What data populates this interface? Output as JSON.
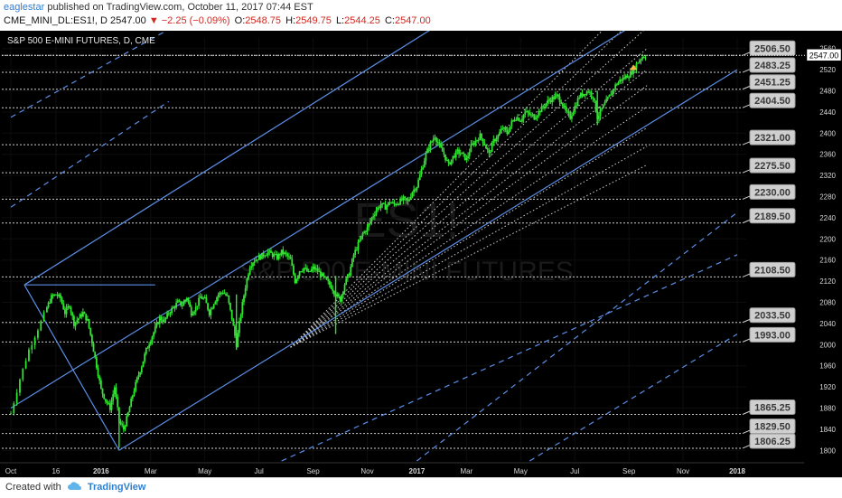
{
  "header": {
    "author": "eaglestar",
    "published_text": "published on TradingView.com, October 11, 2017 07:44 EST",
    "symbol": "CME_MINI_DL:ES1!, D",
    "last": "2547.00",
    "change": "▼ −2.25 (−0.09%)",
    "o_label": "O:",
    "o_value": "2548.75",
    "h_label": "H:",
    "h_value": "2549.75",
    "l_label": "L:",
    "l_value": "2544.25",
    "c_label": "C:",
    "c_value": "2547.00"
  },
  "footer": {
    "created_with": "Created with",
    "brand": "TradingView"
  },
  "colors": {
    "background": "#000000",
    "candle": "#32e432",
    "channel": "#5b8ee6",
    "level_line": "#d0d0d0",
    "label_bg": "#cfcfcf",
    "label_text": "#3a3a3a"
  },
  "chart_data": {
    "type": "candlestick",
    "title": "S&P 500 E-MINI FUTURES, D, CME",
    "watermark_symbol": "ES1!",
    "watermark_name": "S&P 500 E-MINI FUTURES",
    "last_price_label": "2547.00",
    "ylim": [
      1780,
      2580
    ],
    "y_ticks": [
      1800,
      1840,
      1880,
      1920,
      1960,
      2000,
      2040,
      2080,
      2120,
      2160,
      2200,
      2240,
      2280,
      2320,
      2360,
      2400,
      2440,
      2480,
      2520,
      2560
    ],
    "x_ticks": [
      "Oct",
      "16",
      "2016",
      "Mar",
      "May",
      "Jul",
      "Sep",
      "Nov",
      "2017",
      "Mar",
      "May",
      "Jul",
      "Sep",
      "Nov",
      "2018"
    ],
    "x_tick_index": [
      0,
      10,
      20,
      31,
      43,
      55,
      67,
      79,
      90,
      101,
      113,
      125,
      137,
      149,
      161
    ],
    "levels": [
      {
        "label": "2506.50",
        "price": 2547.0
      },
      {
        "label": "2483.25",
        "price": 2515.0
      },
      {
        "label": "2451.25",
        "price": 2483.0
      },
      {
        "label": "2404.50",
        "price": 2448.0
      },
      {
        "label": "2321.00",
        "price": 2378.0
      },
      {
        "label": "2275.50",
        "price": 2325.0
      },
      {
        "label": "2230.00",
        "price": 2275.0
      },
      {
        "label": "2189.50",
        "price": 2230.0
      },
      {
        "label": "2108.50",
        "price": 2128.0
      },
      {
        "label": "2033.50",
        "price": 2042.0
      },
      {
        "label": "1993.00",
        "price": 2005.0
      },
      {
        "label": "1865.25",
        "price": 1868.0
      },
      {
        "label": "1829.50",
        "price": 1832.0
      },
      {
        "label": "1806.25",
        "price": 1804.0
      }
    ],
    "close_path": [
      [
        0,
        1870
      ],
      [
        2,
        1935
      ],
      [
        4,
        1990
      ],
      [
        6,
        2030
      ],
      [
        8,
        2070
      ],
      [
        9,
        2090
      ],
      [
        10,
        2095
      ],
      [
        11,
        2088
      ],
      [
        12,
        2060
      ],
      [
        13,
        2075
      ],
      [
        14,
        2040
      ],
      [
        15,
        2050
      ],
      [
        16,
        2060
      ],
      [
        17,
        2045
      ],
      [
        18,
        2005
      ],
      [
        19,
        1960
      ],
      [
        20,
        1915
      ],
      [
        21,
        1895
      ],
      [
        22,
        1880
      ],
      [
        23,
        1920
      ],
      [
        24,
        1855
      ],
      [
        25,
        1840
      ],
      [
        26,
        1870
      ],
      [
        27,
        1905
      ],
      [
        28,
        1935
      ],
      [
        29,
        1960
      ],
      [
        30,
        1990
      ],
      [
        31,
        2010
      ],
      [
        32,
        2030
      ],
      [
        33,
        2050
      ],
      [
        34,
        2045
      ],
      [
        35,
        2060
      ],
      [
        36,
        2070
      ],
      [
        37,
        2080
      ],
      [
        38,
        2075
      ],
      [
        39,
        2090
      ],
      [
        40,
        2060
      ],
      [
        41,
        2070
      ],
      [
        42,
        2090
      ],
      [
        43,
        2085
      ],
      [
        44,
        2060
      ],
      [
        45,
        2080
      ],
      [
        46,
        2095
      ],
      [
        47,
        2100
      ],
      [
        48,
        2090
      ],
      [
        49,
        2050
      ],
      [
        50,
        2000
      ],
      [
        51,
        2060
      ],
      [
        52,
        2110
      ],
      [
        53,
        2150
      ],
      [
        54,
        2160
      ],
      [
        55,
        2165
      ],
      [
        56,
        2170
      ],
      [
        57,
        2175
      ],
      [
        58,
        2170
      ],
      [
        59,
        2165
      ],
      [
        60,
        2175
      ],
      [
        61,
        2170
      ],
      [
        62,
        2160
      ],
      [
        63,
        2120
      ],
      [
        64,
        2140
      ],
      [
        65,
        2145
      ],
      [
        66,
        2135
      ],
      [
        67,
        2145
      ],
      [
        68,
        2140
      ],
      [
        69,
        2130
      ],
      [
        70,
        2120
      ],
      [
        71,
        2110
      ],
      [
        72,
        2095
      ],
      [
        73,
        2085
      ],
      [
        74,
        2115
      ],
      [
        75,
        2135
      ],
      [
        76,
        2170
      ],
      [
        77,
        2190
      ],
      [
        78,
        2210
      ],
      [
        79,
        2220
      ],
      [
        80,
        2240
      ],
      [
        81,
        2255
      ],
      [
        82,
        2265
      ],
      [
        83,
        2260
      ],
      [
        84,
        2270
      ],
      [
        85,
        2265
      ],
      [
        86,
        2270
      ],
      [
        87,
        2275
      ],
      [
        88,
        2270
      ],
      [
        89,
        2290
      ],
      [
        90,
        2300
      ],
      [
        91,
        2330
      ],
      [
        92,
        2360
      ],
      [
        93,
        2380
      ],
      [
        94,
        2395
      ],
      [
        95,
        2375
      ],
      [
        96,
        2360
      ],
      [
        97,
        2340
      ],
      [
        98,
        2355
      ],
      [
        99,
        2365
      ],
      [
        100,
        2360
      ],
      [
        101,
        2350
      ],
      [
        102,
        2375
      ],
      [
        103,
        2385
      ],
      [
        104,
        2395
      ],
      [
        105,
        2380
      ],
      [
        106,
        2360
      ],
      [
        107,
        2385
      ],
      [
        108,
        2395
      ],
      [
        109,
        2410
      ],
      [
        110,
        2400
      ],
      [
        111,
        2420
      ],
      [
        112,
        2430
      ],
      [
        113,
        2425
      ],
      [
        114,
        2440
      ],
      [
        115,
        2435
      ],
      [
        116,
        2430
      ],
      [
        117,
        2440
      ],
      [
        118,
        2450
      ],
      [
        119,
        2460
      ],
      [
        120,
        2465
      ],
      [
        121,
        2470
      ],
      [
        122,
        2460
      ],
      [
        123,
        2440
      ],
      [
        124,
        2430
      ],
      [
        125,
        2450
      ],
      [
        126,
        2470
      ],
      [
        127,
        2475
      ],
      [
        128,
        2480
      ],
      [
        129,
        2470
      ],
      [
        130,
        2430
      ],
      [
        131,
        2445
      ],
      [
        132,
        2460
      ],
      [
        133,
        2475
      ],
      [
        134,
        2490
      ],
      [
        135,
        2500
      ],
      [
        136,
        2505
      ],
      [
        137,
        2510
      ],
      [
        138,
        2520
      ],
      [
        139,
        2535
      ],
      [
        140,
        2545
      ],
      [
        141,
        2547
      ]
    ],
    "wicks": [
      {
        "i": 50,
        "low": 1990,
        "high": 2095
      },
      {
        "i": 72,
        "low": 2020,
        "high": 2130
      },
      {
        "i": 24,
        "low": 1805,
        "high": 1880
      },
      {
        "i": 130,
        "low": 2415,
        "high": 2480
      }
    ],
    "channels": [
      {
        "style": "solid",
        "points": [
          [
            3,
            2113
          ],
          [
            161,
            2960
          ]
        ]
      },
      {
        "style": "solid",
        "points": [
          [
            0,
            1880
          ],
          [
            161,
            2725
          ]
        ]
      },
      {
        "style": "solid",
        "points": [
          [
            24,
            1800
          ],
          [
            161,
            2520
          ]
        ]
      },
      {
        "style": "dashed",
        "points": [
          [
            0,
            2430
          ],
          [
            40,
            2620
          ]
        ]
      },
      {
        "style": "dashed",
        "points": [
          [
            0,
            2260
          ],
          [
            35,
            2460
          ]
        ]
      },
      {
        "style": "dashed",
        "points": [
          [
            90,
            1780
          ],
          [
            161,
            2250
          ]
        ]
      },
      {
        "style": "dashed",
        "points": [
          [
            115,
            1780
          ],
          [
            161,
            2020
          ]
        ]
      },
      {
        "style": "dashed",
        "points": [
          [
            60,
            1780
          ],
          [
            161,
            2170
          ]
        ]
      }
    ],
    "fan_origin": [
      62,
      1995
    ],
    "fan_targets": [
      2680,
      2640,
      2600,
      2560,
      2520,
      2490,
      2450,
      2410,
      2375,
      2340
    ],
    "pitch_lines": [
      {
        "points": [
          [
            3,
            2113
          ],
          [
            24,
            1800
          ]
        ]
      },
      {
        "points": [
          [
            3,
            2113
          ],
          [
            32,
            2113
          ]
        ]
      }
    ]
  }
}
